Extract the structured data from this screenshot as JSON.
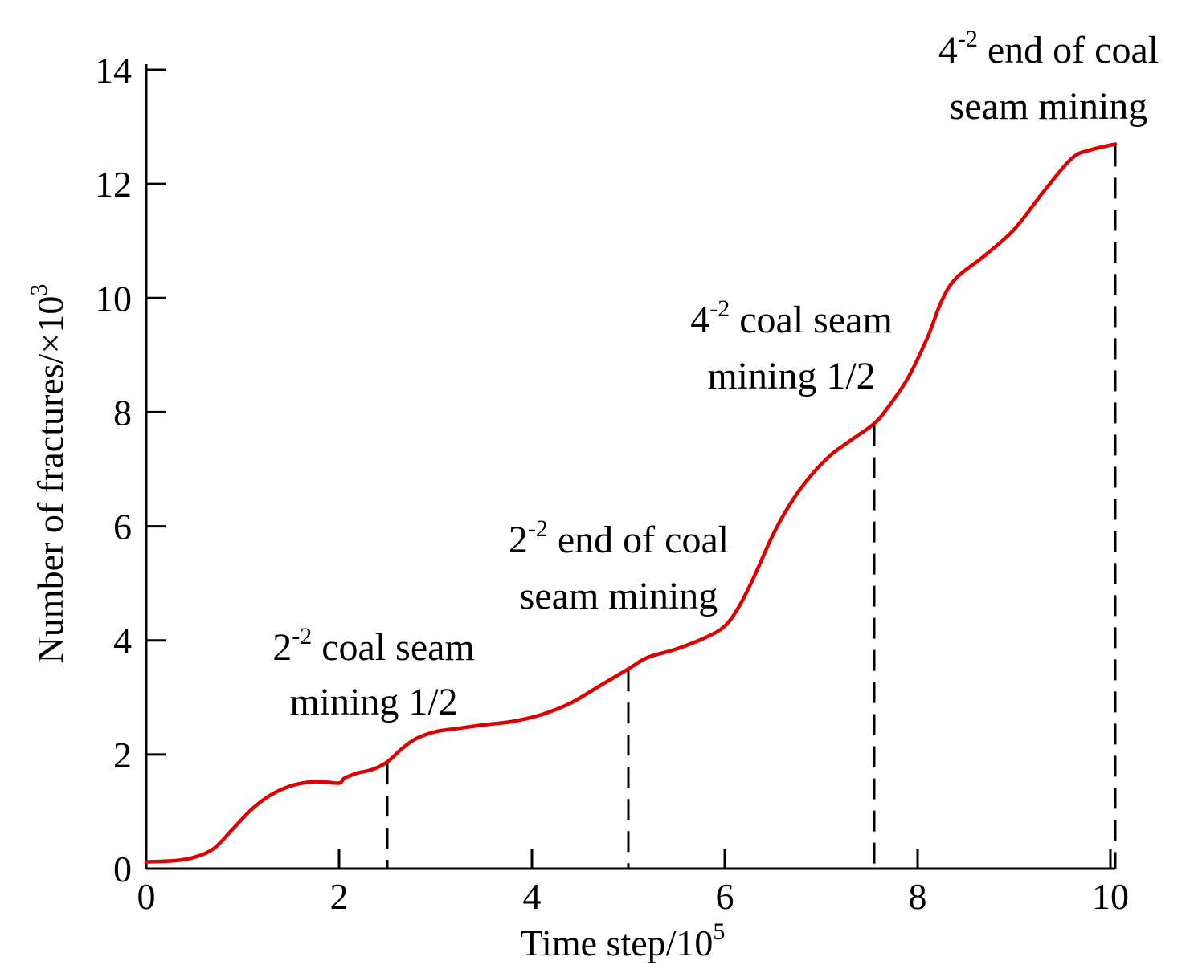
{
  "chart_data": {
    "type": "line",
    "title": "",
    "xlabel": "Time step/10",
    "xlabel_exponent": "5",
    "ylabel": "Number of fractures/×10",
    "ylabel_exponent": "3",
    "xlim": [
      0,
      10
    ],
    "ylim": [
      0,
      14
    ],
    "xticks": [
      0,
      2,
      4,
      6,
      8,
      10
    ],
    "yticks": [
      0,
      2,
      4,
      6,
      8,
      10,
      12,
      14
    ],
    "grid": false,
    "series": [
      {
        "name": "Number of fractures",
        "color": "#e00000",
        "x": [
          0,
          0.3,
          0.5,
          0.7,
          0.9,
          1.1,
          1.3,
          1.5,
          1.7,
          1.85,
          2.0,
          2.05,
          2.1,
          2.2,
          2.35,
          2.5,
          2.65,
          2.8,
          3.0,
          3.2,
          3.5,
          3.8,
          4.1,
          4.4,
          4.7,
          5.0,
          5.2,
          5.5,
          5.8,
          6.0,
          6.15,
          6.3,
          6.5,
          6.7,
          6.9,
          7.1,
          7.3,
          7.55,
          7.7,
          7.9,
          8.1,
          8.25,
          8.4,
          8.7,
          9.0,
          9.3,
          9.6,
          9.8,
          10.05
        ],
        "y": [
          0.12,
          0.14,
          0.2,
          0.35,
          0.7,
          1.05,
          1.3,
          1.45,
          1.52,
          1.52,
          1.5,
          1.58,
          1.62,
          1.68,
          1.74,
          1.87,
          2.1,
          2.28,
          2.4,
          2.45,
          2.52,
          2.58,
          2.7,
          2.9,
          3.2,
          3.5,
          3.7,
          3.85,
          4.05,
          4.25,
          4.6,
          5.1,
          5.85,
          6.45,
          6.9,
          7.25,
          7.5,
          7.8,
          8.1,
          8.6,
          9.3,
          9.95,
          10.35,
          10.75,
          11.2,
          11.85,
          12.45,
          12.6,
          12.7
        ]
      }
    ],
    "markers": [
      {
        "x": 2.5,
        "y": 1.87,
        "label_line1_pre": "2",
        "label_line1_sup": "-2",
        "label_line1_post": " coal seam",
        "label_line2": "mining 1/2"
      },
      {
        "x": 5.0,
        "y": 3.5,
        "label_line1_pre": "2",
        "label_line1_sup": "-2",
        "label_line1_post": " end of coal",
        "label_line2": "seam mining"
      },
      {
        "x": 7.55,
        "y": 7.8,
        "label_line1_pre": "4",
        "label_line1_sup": "-2",
        "label_line1_post": " coal seam",
        "label_line2": "mining 1/2"
      },
      {
        "x": 10.05,
        "y": 12.7,
        "label_line1_pre": "4",
        "label_line1_sup": "-2",
        "label_line1_post": " end of coal",
        "label_line2": "seam mining"
      }
    ]
  }
}
